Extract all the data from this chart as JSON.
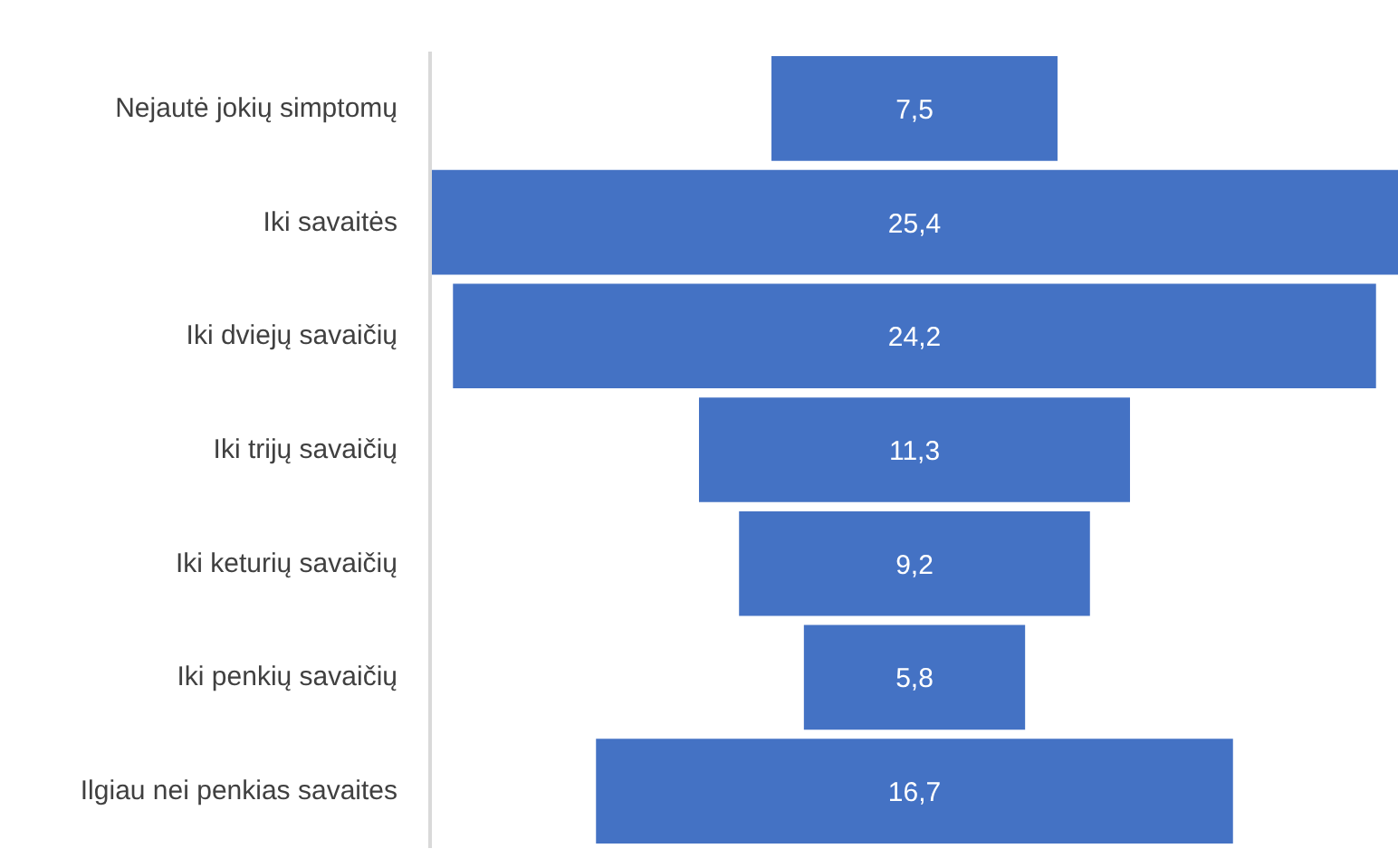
{
  "chart_data": {
    "type": "other",
    "categories": [
      "Nejautė jokių simptomų",
      "Iki savaitės",
      "Iki dviejų savaičių",
      "Iki trijų savaičių",
      "Iki keturių savaičių",
      "Iki penkių savaičių",
      "Ilgiau nei penkias savaites"
    ],
    "values": [
      7.5,
      25.4,
      24.2,
      11.3,
      9.2,
      5.8,
      16.7
    ],
    "color": "#4472c4",
    "value_labels": [
      "7,5",
      "25,4",
      "24,2",
      "11,3",
      "9,2",
      "5,8",
      "16,7"
    ]
  }
}
